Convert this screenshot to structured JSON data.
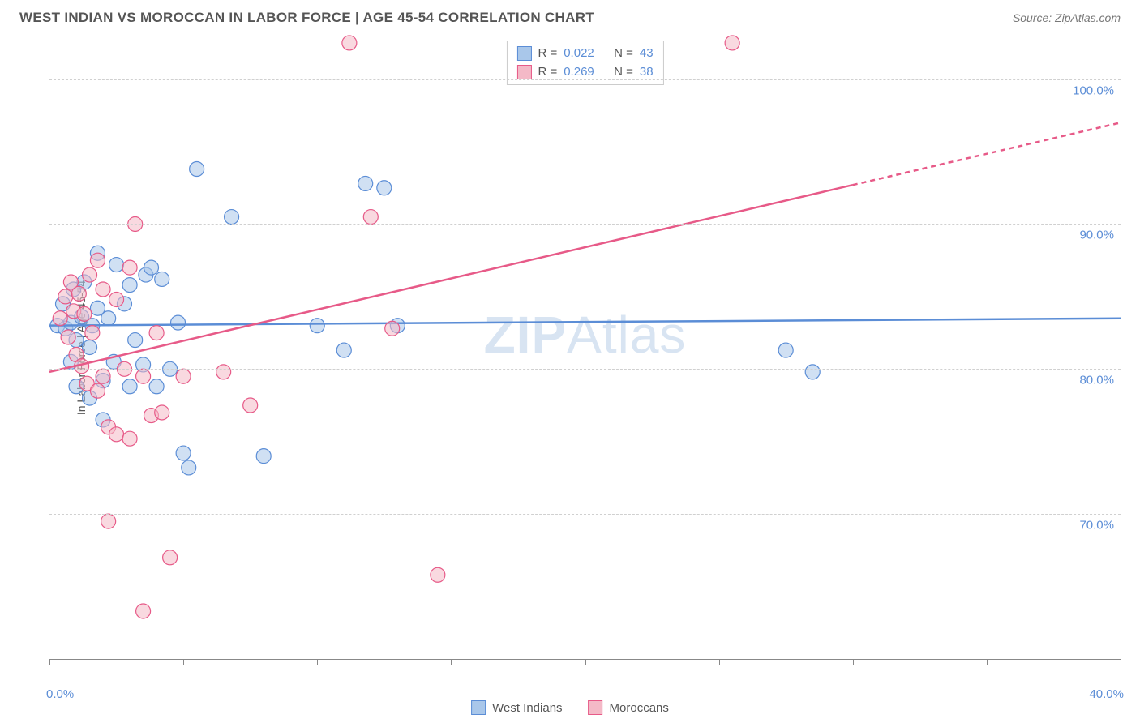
{
  "header": {
    "title": "WEST INDIAN VS MOROCCAN IN LABOR FORCE | AGE 45-54 CORRELATION CHART",
    "source": "Source: ZipAtlas.com"
  },
  "chart": {
    "type": "scatter",
    "ylabel": "In Labor Force | Age 45-54",
    "watermark": "ZIPAtlas",
    "xlim": [
      0,
      40
    ],
    "ylim": [
      60,
      103
    ],
    "xticks_pct": [
      0,
      5,
      10,
      15,
      20,
      25,
      30,
      35,
      40
    ],
    "xtick_labels": {
      "left": "0.0%",
      "right": "40.0%"
    },
    "yticks": [
      {
        "value": 70,
        "label": "70.0%"
      },
      {
        "value": 80,
        "label": "80.0%"
      },
      {
        "value": 90,
        "label": "90.0%"
      },
      {
        "value": 100,
        "label": "100.0%"
      }
    ],
    "grid_color": "#d0d0d0",
    "background_color": "#ffffff",
    "marker_radius": 9,
    "marker_opacity": 0.55,
    "series": [
      {
        "name": "West Indians",
        "color_fill": "#a9c7ea",
        "color_stroke": "#5b8dd6",
        "R": "0.022",
        "N": "43",
        "trend": {
          "x1": 0,
          "y1": 83.0,
          "x2": 40,
          "y2": 83.5,
          "dash_from_x": 40
        },
        "points": [
          [
            0.3,
            83
          ],
          [
            0.5,
            84.5
          ],
          [
            0.6,
            82.8
          ],
          [
            0.8,
            83.2
          ],
          [
            0.8,
            80.5
          ],
          [
            0.9,
            85.5
          ],
          [
            1.0,
            82.0
          ],
          [
            1.0,
            78.8
          ],
          [
            1.2,
            83.6
          ],
          [
            1.3,
            86.0
          ],
          [
            1.5,
            81.5
          ],
          [
            1.5,
            78.0
          ],
          [
            1.6,
            83.0
          ],
          [
            1.8,
            88.0
          ],
          [
            1.8,
            84.2
          ],
          [
            2.0,
            79.2
          ],
          [
            2.0,
            76.5
          ],
          [
            2.2,
            83.5
          ],
          [
            2.4,
            80.5
          ],
          [
            2.5,
            87.2
          ],
          [
            2.8,
            84.5
          ],
          [
            3.0,
            78.8
          ],
          [
            3.0,
            85.8
          ],
          [
            3.2,
            82.0
          ],
          [
            3.5,
            80.3
          ],
          [
            3.6,
            86.5
          ],
          [
            3.8,
            87.0
          ],
          [
            4.0,
            78.8
          ],
          [
            4.2,
            86.2
          ],
          [
            4.5,
            80.0
          ],
          [
            4.8,
            83.2
          ],
          [
            5.0,
            74.2
          ],
          [
            5.2,
            73.2
          ],
          [
            5.5,
            93.8
          ],
          [
            6.8,
            90.5
          ],
          [
            8.0,
            74.0
          ],
          [
            10.0,
            83.0
          ],
          [
            11.0,
            81.3
          ],
          [
            12.5,
            92.5
          ],
          [
            13.0,
            83.0
          ],
          [
            27.5,
            81.3
          ],
          [
            28.5,
            79.8
          ],
          [
            11.8,
            92.8
          ]
        ]
      },
      {
        "name": "Moroccans",
        "color_fill": "#f4b9c7",
        "color_stroke": "#e75a88",
        "R": "0.269",
        "N": "38",
        "trend": {
          "x1": 0,
          "y1": 79.8,
          "x2": 40,
          "y2": 97.0,
          "dash_from_x": 30
        },
        "points": [
          [
            0.4,
            83.5
          ],
          [
            0.6,
            85.0
          ],
          [
            0.7,
            82.2
          ],
          [
            0.8,
            86.0
          ],
          [
            0.9,
            84.0
          ],
          [
            1.0,
            81.0
          ],
          [
            1.1,
            85.2
          ],
          [
            1.2,
            80.2
          ],
          [
            1.3,
            83.8
          ],
          [
            1.4,
            79.0
          ],
          [
            1.5,
            86.5
          ],
          [
            1.6,
            82.5
          ],
          [
            1.8,
            78.5
          ],
          [
            1.8,
            87.5
          ],
          [
            2.0,
            85.5
          ],
          [
            2.0,
            79.5
          ],
          [
            2.2,
            76.0
          ],
          [
            2.2,
            69.5
          ],
          [
            2.5,
            75.5
          ],
          [
            2.5,
            84.8
          ],
          [
            2.8,
            80.0
          ],
          [
            3.0,
            87.0
          ],
          [
            3.0,
            75.2
          ],
          [
            3.2,
            90.0
          ],
          [
            3.5,
            79.5
          ],
          [
            3.5,
            63.3
          ],
          [
            3.8,
            76.8
          ],
          [
            4.0,
            82.5
          ],
          [
            4.2,
            77.0
          ],
          [
            4.5,
            67.0
          ],
          [
            5.0,
            79.5
          ],
          [
            6.5,
            79.8
          ],
          [
            7.5,
            77.5
          ],
          [
            11.2,
            102.5
          ],
          [
            12.0,
            90.5
          ],
          [
            12.8,
            82.8
          ],
          [
            14.5,
            65.8
          ],
          [
            25.5,
            102.5
          ]
        ]
      }
    ],
    "legend_bottom": [
      {
        "label": "West Indians",
        "fill": "#a9c7ea",
        "stroke": "#5b8dd6"
      },
      {
        "label": "Moroccans",
        "fill": "#f4b9c7",
        "stroke": "#e75a88"
      }
    ]
  }
}
